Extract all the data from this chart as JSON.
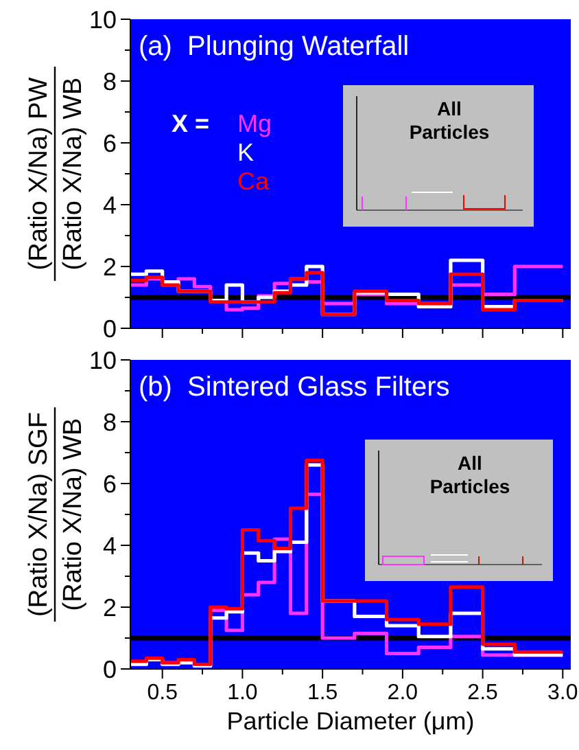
{
  "chart_data": [
    {
      "type": "histogram",
      "title": "(a)  Plunging Waterfall",
      "ylabel": "(Ratio X/Na) PW\n(Ratio X/Na) WB",
      "legend_title": "X =",
      "legend": "top left",
      "tick_labels": "y",
      "annotations": [
        "All Particles"
      ],
      "bins": [
        0.3,
        0.4,
        0.5,
        0.6,
        0.7,
        0.8,
        0.9,
        1.0,
        1.1,
        1.2,
        1.3,
        1.4,
        1.5,
        1.7,
        1.9,
        2.1,
        2.3,
        2.5,
        2.7,
        3.0
      ],
      "xlim": [
        0.3,
        3.05
      ],
      "xticks": [
        {
          "value": 0.5,
          "label": null
        },
        {
          "value": 0.75,
          "label": null
        },
        {
          "value": 1,
          "label": null
        },
        {
          "value": 1.25,
          "label": null
        },
        {
          "value": 1.5,
          "label": null
        },
        {
          "value": 1.75,
          "label": null
        },
        {
          "value": 2,
          "label": null
        },
        {
          "value": 2.25,
          "label": null
        },
        {
          "value": 2.5,
          "label": null
        },
        {
          "value": 2.75,
          "label": null
        },
        {
          "value": 3,
          "label": null
        }
      ],
      "ylim": [
        0,
        10
      ],
      "yticks": [
        0,
        {
          "value": 1,
          "label": null
        },
        2,
        {
          "value": 3,
          "label": null
        },
        4,
        {
          "value": 5,
          "label": null
        },
        6,
        {
          "value": 7,
          "label": null
        },
        8,
        {
          "value": 9,
          "label": null
        },
        10
      ],
      "ref_lines": [
        {
          "axis": "y",
          "value": 1,
          "color": "#000000"
        }
      ],
      "series": [
        {
          "name": "Mg",
          "color": "#ff33ff",
          "values": [
            1.4,
            1.6,
            1.4,
            1.6,
            1.35,
            0.9,
            0.6,
            0.65,
            1.05,
            1.45,
            1.6,
            1.5,
            0.8,
            1.1,
            0.8,
            0.8,
            1.4,
            1.1,
            2.0
          ]
        },
        {
          "name": "K",
          "color": "#ffffff",
          "values": [
            1.75,
            1.85,
            1.5,
            1.2,
            1.2,
            0.9,
            1.4,
            0.85,
            1.0,
            1.2,
            1.4,
            2.0,
            0.45,
            1.15,
            1.1,
            0.7,
            2.2,
            0.7,
            0.9
          ]
        },
        {
          "name": "Ca",
          "color": "#ff0000",
          "values": [
            1.55,
            1.65,
            1.4,
            1.2,
            1.2,
            0.85,
            0.85,
            0.85,
            0.85,
            1.15,
            1.6,
            1.8,
            0.45,
            1.2,
            0.9,
            0.8,
            1.75,
            0.6,
            0.9
          ]
        }
      ]
    },
    {
      "type": "histogram",
      "title": "(b)  Sintered Glass Filters",
      "ylabel": "(Ratio X/Na) SGF\n(Ratio X/Na) WB",
      "xlabel": "Particle Diameter (μm)",
      "annotations": [
        "All Particles"
      ],
      "bins": [
        0.3,
        0.4,
        0.5,
        0.6,
        0.7,
        0.8,
        0.9,
        1.0,
        1.1,
        1.2,
        1.3,
        1.4,
        1.5,
        1.7,
        1.9,
        2.1,
        2.3,
        2.5,
        2.7,
        3.0
      ],
      "xlim": [
        0.3,
        3.05
      ],
      "xticks": [
        {
          "value": 0.5,
          "label": "0.5"
        },
        {
          "value": 0.75,
          "label": null
        },
        {
          "value": 1,
          "label": "1.0"
        },
        {
          "value": 1.25,
          "label": null
        },
        {
          "value": 1.5,
          "label": "1.5"
        },
        {
          "value": 1.75,
          "label": null
        },
        {
          "value": 2,
          "label": "2.0"
        },
        {
          "value": 2.25,
          "label": null
        },
        {
          "value": 2.5,
          "label": "2.5"
        },
        {
          "value": 2.75,
          "label": null
        },
        {
          "value": 3,
          "label": "3.0"
        }
      ],
      "ylim": [
        0,
        10
      ],
      "yticks": [
        0,
        {
          "value": 1,
          "label": null
        },
        2,
        {
          "value": 3,
          "label": null
        },
        4,
        {
          "value": 5,
          "label": null
        },
        6,
        {
          "value": 7,
          "label": null
        },
        8,
        {
          "value": 9,
          "label": null
        },
        10
      ],
      "ref_lines": [
        {
          "axis": "y",
          "value": 1,
          "color": "#000000"
        }
      ],
      "series": [
        {
          "color": "#ff33ff",
          "values": [
            0.2,
            0.3,
            0.2,
            0.25,
            0.1,
            1.9,
            1.25,
            2.4,
            2.8,
            4.2,
            1.8,
            5.65,
            1.0,
            1.15,
            0.5,
            0.7,
            1.05,
            0.45,
            0.45
          ]
        },
        {
          "color": "#ffffff",
          "values": [
            0.15,
            0.3,
            0.15,
            0.2,
            0.1,
            1.65,
            1.85,
            3.75,
            3.5,
            3.8,
            4.1,
            6.6,
            2.2,
            1.7,
            1.4,
            1.05,
            1.8,
            0.65,
            0.45
          ]
        },
        {
          "color": "#ff0000",
          "values": [
            0.25,
            0.35,
            0.2,
            0.3,
            0.15,
            2.0,
            1.95,
            4.5,
            4.15,
            3.9,
            5.2,
            6.75,
            2.2,
            2.2,
            1.6,
            1.45,
            2.65,
            0.8,
            0.55
          ]
        }
      ]
    }
  ]
}
